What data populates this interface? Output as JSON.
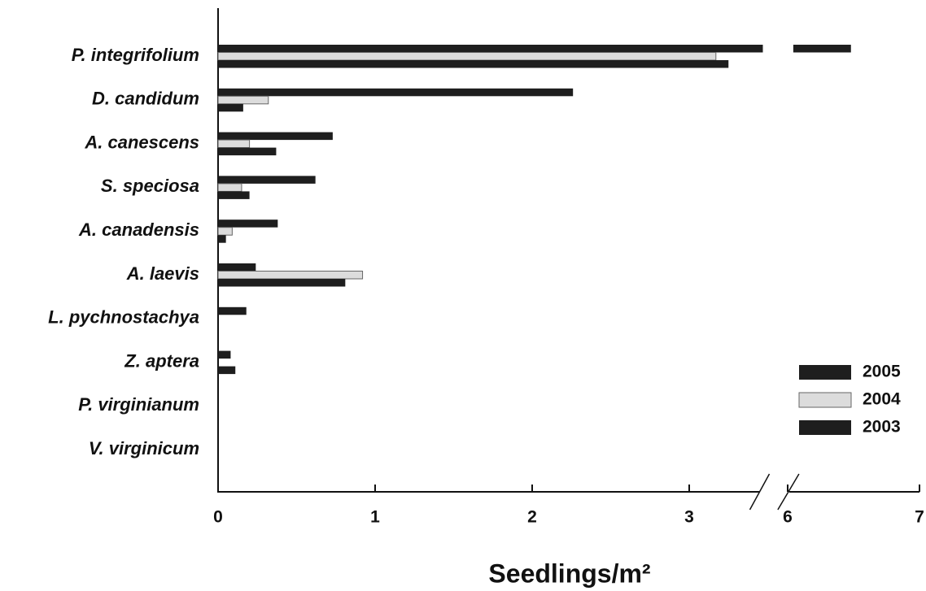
{
  "chart_data": {
    "type": "hbar",
    "x_label": "Seedlings/m²",
    "categories": [
      "P. integrifolium",
      "D. candidum",
      "A. canescens",
      "S. speciosa",
      "A. canadensis",
      "A. laevis",
      "L. pychnostachya",
      "Z. aptera",
      "P. virginianum",
      "V. virginicum"
    ],
    "series": [
      {
        "name": "2005",
        "color": "#1e1e1e",
        "values": [
          6.48,
          2.26,
          0.73,
          0.62,
          0.38,
          0.24,
          0.18,
          0.08,
          0,
          0
        ]
      },
      {
        "name": "2004",
        "color": "#dcdcdc",
        "values": [
          3.17,
          0.32,
          0.2,
          0.15,
          0.09,
          0.92,
          0,
          0,
          0,
          0
        ]
      },
      {
        "name": "2003",
        "color": "#1e1e1e",
        "values": [
          3.25,
          0.16,
          0.37,
          0.2,
          0.05,
          0.81,
          0,
          0.11,
          0,
          0
        ]
      }
    ],
    "xlim": [
      0,
      7
    ],
    "xticks": [
      0,
      1,
      2,
      3,
      6,
      7
    ],
    "x_break": [
      3.5,
      5.95
    ],
    "legend": "lower right",
    "grid": false
  }
}
